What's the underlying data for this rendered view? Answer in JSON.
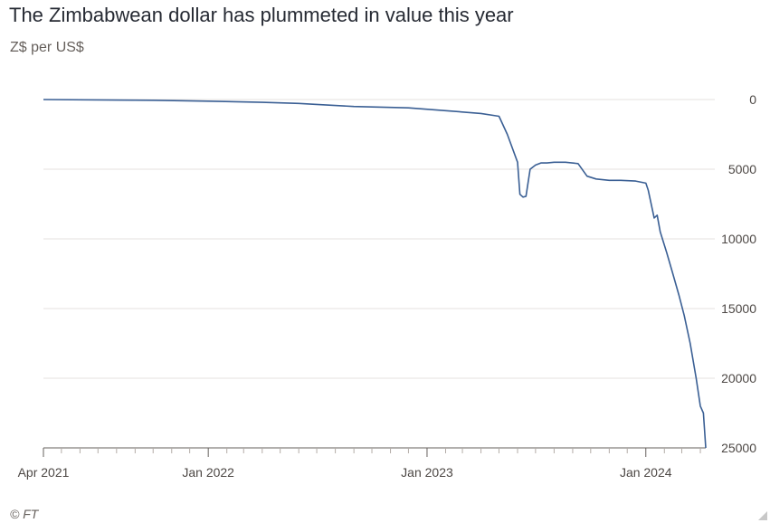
{
  "title": "The Zimbabwean dollar has plummeted in value this year",
  "subtitle": "Z$ per US$",
  "source": "© FT",
  "chart_data": {
    "type": "line",
    "title": "The Zimbabwean dollar has plummeted in value this year",
    "ylabel": "Z$ per US$",
    "xlabel": "",
    "y_inverted": true,
    "ylim": [
      0,
      25000
    ],
    "xlim": [
      "2021-04-01",
      "2024-04-10"
    ],
    "y_ticks": [
      0,
      5000,
      10000,
      15000,
      20000,
      25000
    ],
    "y_tick_labels": [
      "0",
      "5000",
      "10000",
      "15000",
      "20000",
      "25000"
    ],
    "x_ticks": [
      "2021-04-01",
      "2022-01-01",
      "2023-01-01",
      "2024-01-01"
    ],
    "x_tick_labels": [
      "Apr 2021",
      "Jan 2022",
      "Jan 2023",
      "Jan 2024"
    ],
    "grid": "horizontal",
    "legend": "none",
    "line_color": "#3a5f94",
    "series": [
      {
        "name": "",
        "x": [
          "2021-04-01",
          "2021-10-01",
          "2022-01-01",
          "2022-04-01",
          "2022-06-01",
          "2022-07-01",
          "2022-09-01",
          "2022-12-01",
          "2023-02-01",
          "2023-04-01",
          "2023-05-01",
          "2023-05-15",
          "2023-06-01",
          "2023-06-05",
          "2023-06-10",
          "2023-06-15",
          "2023-06-22",
          "2023-07-01",
          "2023-07-10",
          "2023-07-20",
          "2023-08-01",
          "2023-08-20",
          "2023-09-10",
          "2023-09-25",
          "2023-10-10",
          "2023-11-01",
          "2023-11-20",
          "2023-12-15",
          "2024-01-01",
          "2024-01-05",
          "2024-01-15",
          "2024-01-20",
          "2024-01-25",
          "2024-02-05",
          "2024-02-15",
          "2024-02-25",
          "2024-03-05",
          "2024-03-15",
          "2024-03-25",
          "2024-04-01",
          "2024-04-06",
          "2024-04-10"
        ],
        "values": [
          0,
          50,
          120,
          200,
          280,
          350,
          500,
          600,
          800,
          1000,
          1200,
          2500,
          4500,
          6800,
          7000,
          6950,
          5000,
          4700,
          4550,
          4550,
          4500,
          4500,
          4600,
          5500,
          5700,
          5800,
          5800,
          5850,
          6000,
          6500,
          8500,
          8300,
          9500,
          11000,
          12500,
          14000,
          15500,
          17500,
          20000,
          22000,
          22500,
          25000
        ]
      }
    ]
  }
}
